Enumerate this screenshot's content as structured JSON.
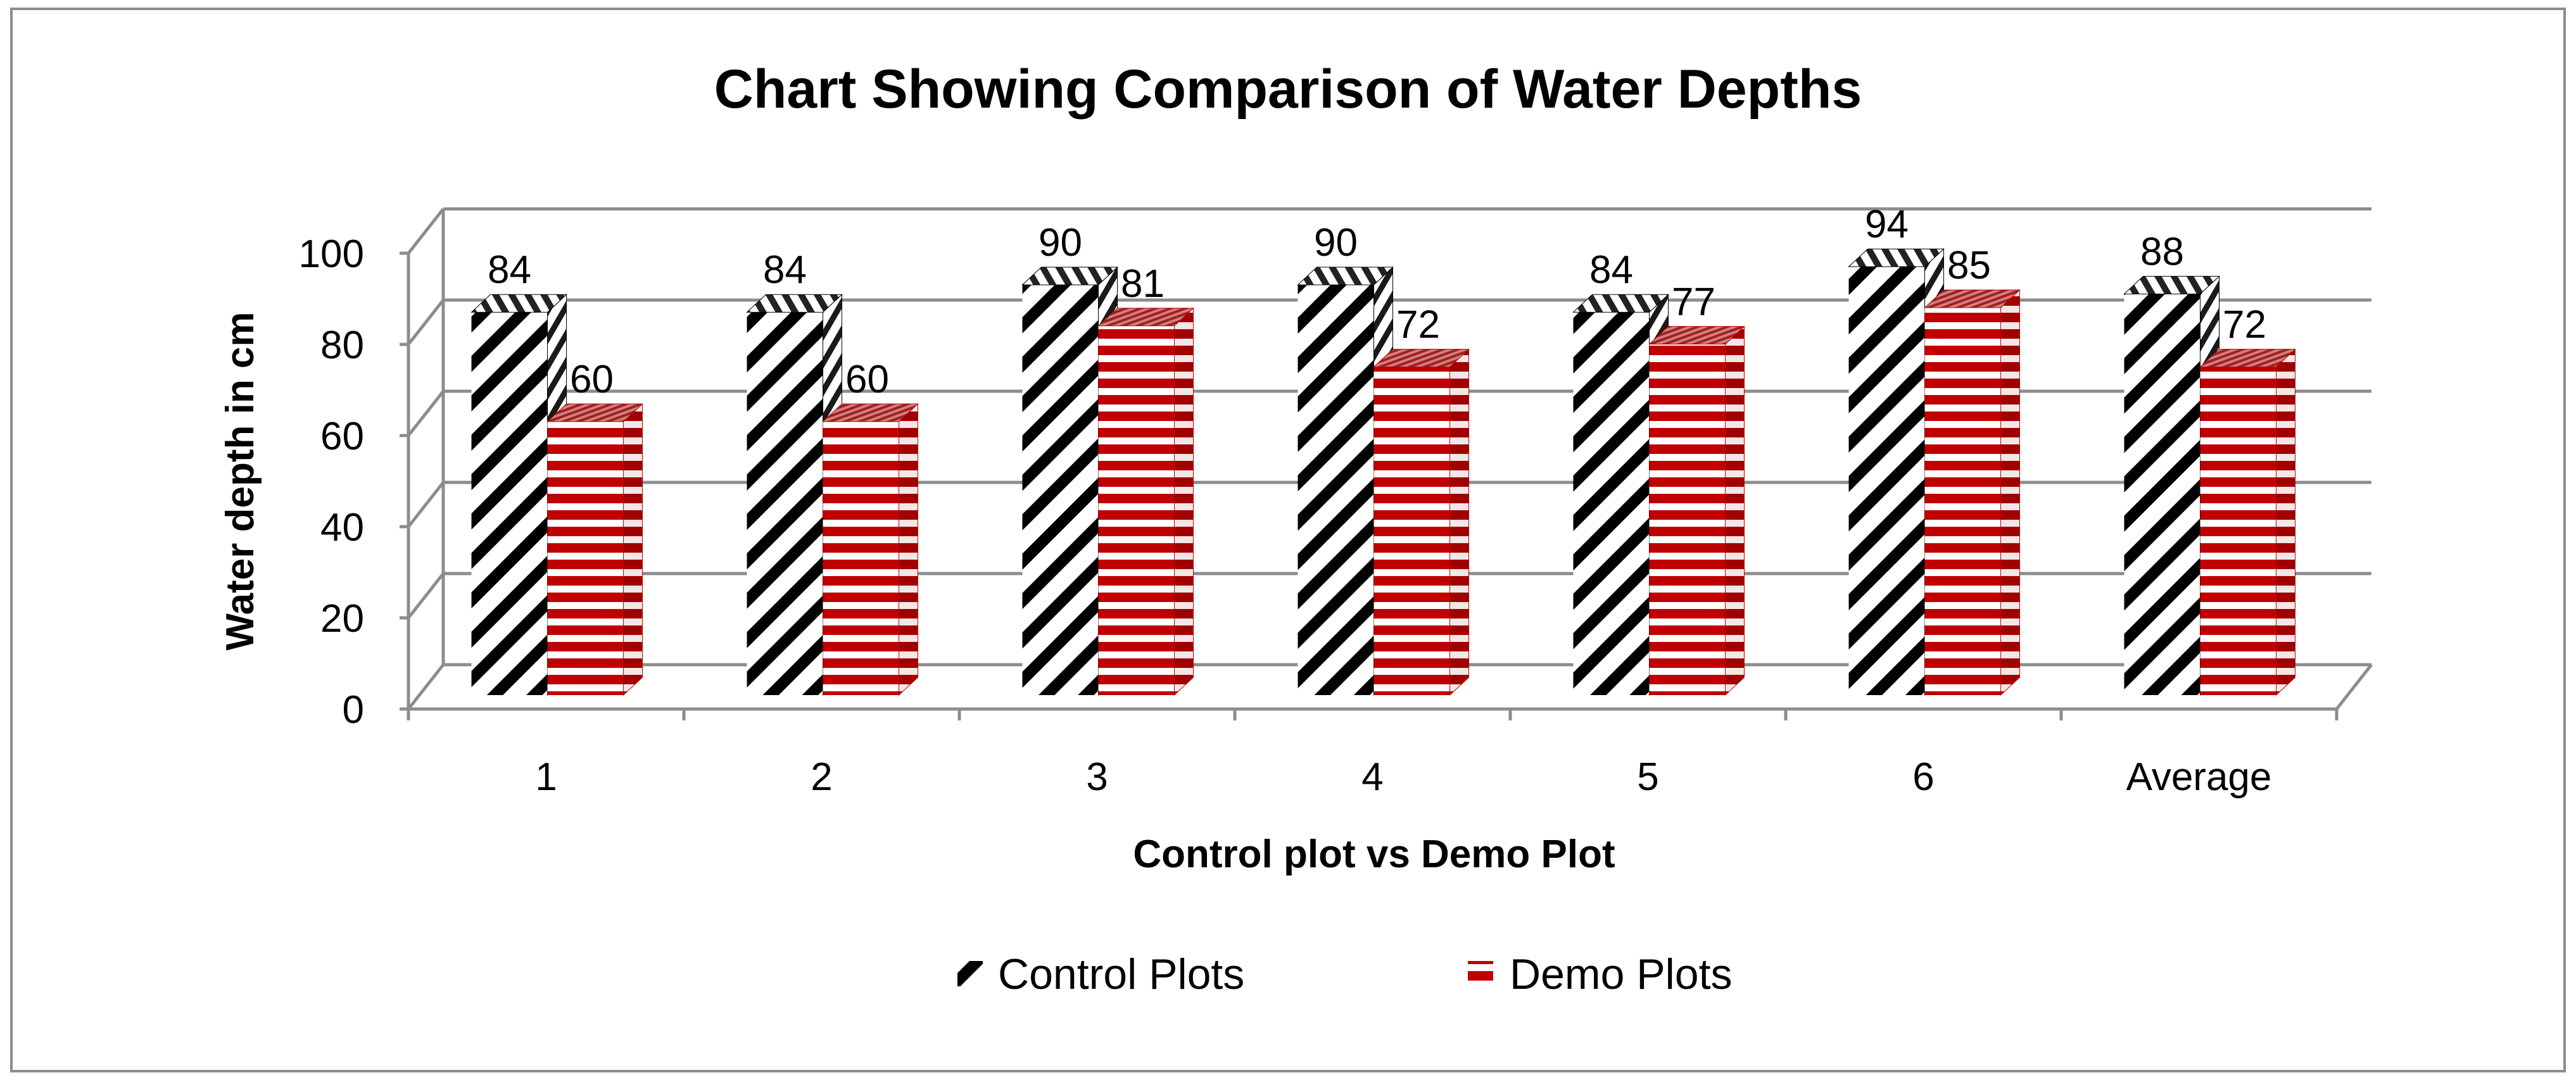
{
  "chart_data": {
    "type": "bar",
    "title": "Chart Showing Comparison of Water Depths",
    "xlabel": "Control plot vs Demo Plot",
    "ylabel": "Water depth in cm",
    "categories": [
      "1",
      "2",
      "3",
      "4",
      "5",
      "6",
      "Average"
    ],
    "series": [
      {
        "name": "Control Plots",
        "values": [
          84,
          84,
          90,
          90,
          84,
          94,
          88
        ],
        "pattern": "diagonal-stripes",
        "color": "#000000"
      },
      {
        "name": "Demo Plots",
        "values": [
          60,
          60,
          81,
          72,
          77,
          85,
          72
        ],
        "pattern": "horizontal-stripes",
        "color": "#c00000"
      }
    ],
    "ylim": [
      0,
      100
    ],
    "yticks": [
      0,
      20,
      40,
      60,
      80,
      100
    ],
    "grid": true,
    "legend": "bottom-center",
    "style": "3d-clustered-column"
  }
}
